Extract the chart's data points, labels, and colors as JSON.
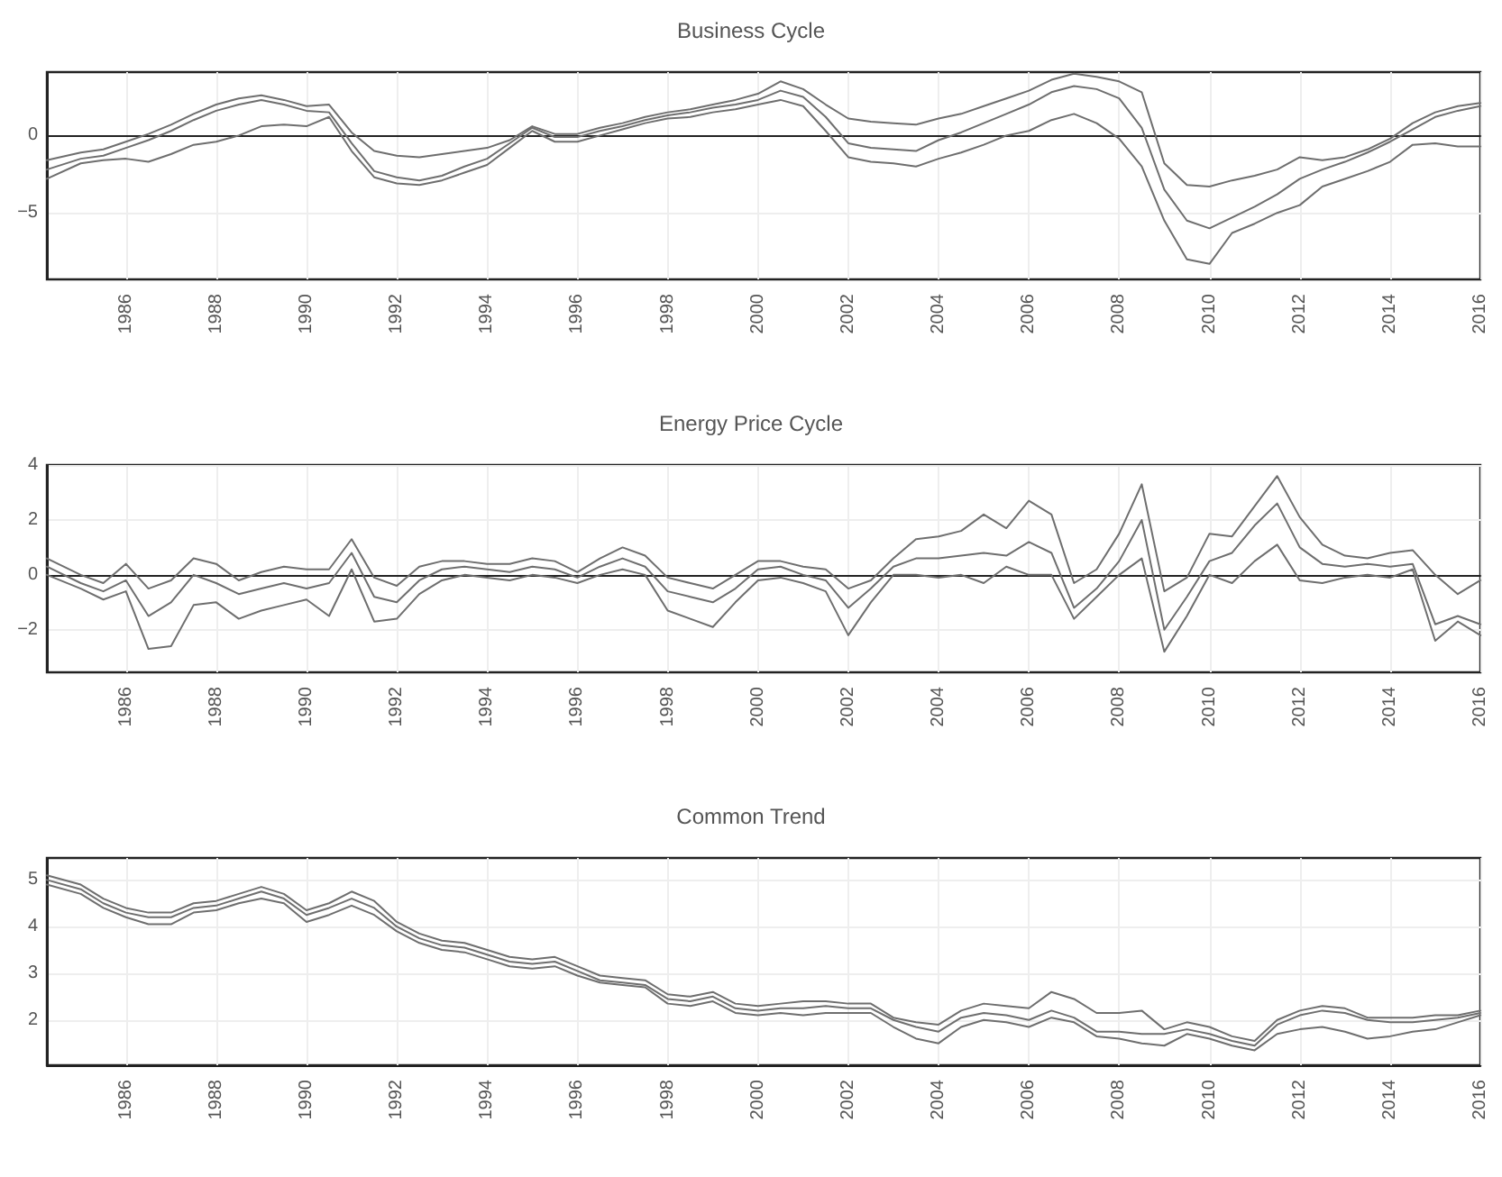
{
  "chart_data": [
    {
      "type": "line",
      "title": "Business Cycle",
      "grid": true,
      "marker": "none",
      "line_style": "solid",
      "xlim": [
        1984.25,
        2016
      ],
      "xticks": [
        1986,
        1988,
        1990,
        1992,
        1994,
        1996,
        1998,
        2000,
        2002,
        2004,
        2006,
        2008,
        2010,
        2012,
        2014,
        2016
      ],
      "ylim": [
        -9.3,
        4.1
      ],
      "yticks": [
        -5,
        0
      ],
      "x": [
        1984.25,
        1985,
        1985.5,
        1986,
        1986.5,
        1987,
        1987.5,
        1988,
        1988.5,
        1989,
        1989.5,
        1990,
        1990.5,
        1991,
        1991.5,
        1992,
        1992.5,
        1993,
        1993.5,
        1994,
        1994.5,
        1995,
        1995.5,
        1996,
        1996.5,
        1997,
        1997.5,
        1998,
        1998.5,
        1999,
        1999.5,
        2000,
        2000.5,
        2001,
        2001.5,
        2002,
        2002.5,
        2003,
        2003.5,
        2004,
        2004.5,
        2005,
        2005.5,
        2006,
        2006.5,
        2007,
        2007.5,
        2008,
        2008.5,
        2009,
        2009.5,
        2010,
        2010.5,
        2011,
        2011.5,
        2012,
        2012.5,
        2013,
        2013.5,
        2014,
        2014.5,
        2015,
        2015.5,
        2016
      ],
      "series": [
        {
          "color": "#6e6e6e",
          "values": [
            -1.6,
            -1.1,
            -0.9,
            -0.4,
            0.1,
            0.7,
            1.4,
            2.0,
            2.4,
            2.6,
            2.3,
            1.9,
            2.0,
            0.2,
            -1.0,
            -1.3,
            -1.4,
            -1.2,
            -1.0,
            -0.8,
            -0.3,
            0.6,
            0.1,
            0.1,
            0.5,
            0.8,
            1.2,
            1.5,
            1.7,
            2.0,
            2.3,
            2.7,
            3.5,
            3.0,
            2.0,
            1.1,
            0.9,
            0.8,
            0.7,
            1.1,
            1.4,
            1.9,
            2.4,
            2.9,
            3.6,
            4.0,
            3.8,
            3.5,
            2.8,
            -1.8,
            -3.2,
            -3.3,
            -2.9,
            -2.6,
            -2.2,
            -1.4,
            -1.6,
            -1.4,
            -0.9,
            -0.2,
            0.8,
            1.5,
            1.9,
            2.1
          ]
        },
        {
          "color": "#6e6e6e",
          "values": [
            -2.2,
            -1.5,
            -1.3,
            -0.8,
            -0.3,
            0.3,
            1.0,
            1.6,
            2.0,
            2.3,
            2.0,
            1.6,
            1.5,
            -0.5,
            -2.3,
            -2.7,
            -2.9,
            -2.6,
            -2.0,
            -1.5,
            -0.5,
            0.5,
            -0.1,
            -0.1,
            0.3,
            0.6,
            1.0,
            1.3,
            1.5,
            1.8,
            2.0,
            2.3,
            2.9,
            2.5,
            1.2,
            -0.5,
            -0.8,
            -0.9,
            -1.0,
            -0.3,
            0.2,
            0.8,
            1.4,
            2.0,
            2.8,
            3.2,
            3.0,
            2.4,
            0.5,
            -3.5,
            -5.5,
            -6.0,
            -5.3,
            -4.6,
            -3.8,
            -2.8,
            -2.2,
            -1.7,
            -1.1,
            -0.4,
            0.4,
            1.2,
            1.6,
            1.9
          ]
        },
        {
          "color": "#6e6e6e",
          "values": [
            -2.8,
            -1.8,
            -1.6,
            -1.5,
            -1.7,
            -1.2,
            -0.6,
            -0.4,
            0.0,
            0.6,
            0.7,
            0.6,
            1.2,
            -1.0,
            -2.7,
            -3.1,
            -3.2,
            -2.9,
            -2.4,
            -1.9,
            -0.8,
            0.3,
            -0.4,
            -0.4,
            0.0,
            0.4,
            0.8,
            1.1,
            1.2,
            1.5,
            1.7,
            2.0,
            2.3,
            1.9,
            0.3,
            -1.4,
            -1.7,
            -1.8,
            -2.0,
            -1.5,
            -1.1,
            -0.6,
            0.0,
            0.3,
            1.0,
            1.4,
            0.8,
            -0.2,
            -2.0,
            -5.5,
            -8.0,
            -8.3,
            -6.3,
            -5.7,
            -5.0,
            -4.5,
            -3.3,
            -2.8,
            -2.3,
            -1.7,
            -0.6,
            -0.5,
            -0.7,
            -0.7
          ]
        }
      ]
    },
    {
      "type": "line",
      "title": "Energy Price Cycle",
      "grid": true,
      "marker": "none",
      "line_style": "solid",
      "xlim": [
        1984.25,
        2016
      ],
      "xticks": [
        1986,
        1988,
        1990,
        1992,
        1994,
        1996,
        1998,
        2000,
        2002,
        2004,
        2006,
        2008,
        2010,
        2012,
        2014,
        2016
      ],
      "ylim": [
        -3.55,
        4
      ],
      "yticks": [
        -2,
        0,
        2,
        4
      ],
      "x": [
        1984.25,
        1985,
        1985.5,
        1986,
        1986.5,
        1987,
        1987.5,
        1988,
        1988.5,
        1989,
        1989.5,
        1990,
        1990.5,
        1991,
        1991.5,
        1992,
        1992.5,
        1993,
        1993.5,
        1994,
        1994.5,
        1995,
        1995.5,
        1996,
        1996.5,
        1997,
        1997.5,
        1998,
        1998.5,
        1999,
        1999.5,
        2000,
        2000.5,
        2001,
        2001.5,
        2002,
        2002.5,
        2003,
        2003.5,
        2004,
        2004.5,
        2005,
        2005.5,
        2006,
        2006.5,
        2007,
        2007.5,
        2008,
        2008.5,
        2009,
        2009.5,
        2010,
        2010.5,
        2011,
        2011.5,
        2012,
        2012.5,
        2013,
        2013.5,
        2014,
        2014.5,
        2015,
        2015.5,
        2016
      ],
      "series": [
        {
          "color": "#6e6e6e",
          "values": [
            0.6,
            0.0,
            -0.3,
            0.4,
            -0.5,
            -0.2,
            0.6,
            0.4,
            -0.2,
            0.1,
            0.3,
            0.2,
            0.2,
            1.3,
            -0.1,
            -0.4,
            0.3,
            0.5,
            0.5,
            0.4,
            0.4,
            0.6,
            0.5,
            0.1,
            0.6,
            1.0,
            0.7,
            -0.1,
            -0.3,
            -0.5,
            0.0,
            0.5,
            0.5,
            0.3,
            0.2,
            -0.5,
            -0.2,
            0.6,
            1.3,
            1.4,
            1.6,
            2.2,
            1.7,
            2.7,
            2.2,
            -0.3,
            0.2,
            1.5,
            3.3,
            -0.6,
            -0.1,
            1.5,
            1.4,
            2.5,
            3.6,
            2.1,
            1.1,
            0.7,
            0.6,
            0.8,
            0.9,
            0.0,
            -0.7,
            -0.2
          ]
        },
        {
          "color": "#6e6e6e",
          "values": [
            0.3,
            -0.3,
            -0.6,
            -0.2,
            -1.5,
            -1.0,
            0.0,
            -0.3,
            -0.7,
            -0.5,
            -0.3,
            -0.5,
            -0.3,
            0.8,
            -0.8,
            -1.0,
            -0.2,
            0.2,
            0.3,
            0.2,
            0.1,
            0.3,
            0.2,
            -0.1,
            0.3,
            0.6,
            0.3,
            -0.6,
            -0.8,
            -1.0,
            -0.5,
            0.2,
            0.3,
            0.0,
            -0.2,
            -1.2,
            -0.5,
            0.3,
            0.6,
            0.6,
            0.7,
            0.8,
            0.7,
            1.2,
            0.8,
            -1.2,
            -0.5,
            0.5,
            2.0,
            -2.0,
            -0.8,
            0.5,
            0.8,
            1.8,
            2.6,
            1.0,
            0.4,
            0.3,
            0.4,
            0.3,
            0.4,
            -1.8,
            -1.5,
            -1.8
          ]
        },
        {
          "color": "#6e6e6e",
          "values": [
            0.0,
            -0.5,
            -0.9,
            -0.6,
            -2.7,
            -2.6,
            -1.1,
            -1.0,
            -1.6,
            -1.3,
            -1.1,
            -0.9,
            -1.5,
            0.2,
            -1.7,
            -1.6,
            -0.7,
            -0.2,
            0.0,
            -0.1,
            -0.2,
            0.0,
            -0.1,
            -0.3,
            0.0,
            0.2,
            0.0,
            -1.3,
            -1.6,
            -1.9,
            -1.0,
            -0.2,
            -0.1,
            -0.3,
            -0.6,
            -2.2,
            -1.0,
            0.0,
            0.0,
            -0.1,
            0.0,
            -0.3,
            0.3,
            0.0,
            0.0,
            -1.6,
            -0.8,
            0.0,
            0.6,
            -2.8,
            -1.5,
            0.0,
            -0.3,
            0.5,
            1.1,
            -0.2,
            -0.3,
            -0.1,
            0.0,
            -0.1,
            0.2,
            -2.4,
            -1.7,
            -2.2
          ]
        }
      ]
    },
    {
      "type": "line",
      "title": "Common Trend",
      "grid": true,
      "marker": "none",
      "line_style": "solid",
      "xlim": [
        1984.25,
        2016
      ],
      "xticks": [
        1986,
        1988,
        1990,
        1992,
        1994,
        1996,
        1998,
        2000,
        2002,
        2004,
        2006,
        2008,
        2010,
        2012,
        2014,
        2016
      ],
      "ylim": [
        1.03,
        5.47
      ],
      "yticks": [
        2,
        3,
        4,
        5
      ],
      "x": [
        1984.25,
        1985,
        1985.5,
        1986,
        1986.5,
        1987,
        1987.5,
        1988,
        1988.5,
        1989,
        1989.5,
        1990,
        1990.5,
        1991,
        1991.5,
        1992,
        1992.5,
        1993,
        1993.5,
        1994,
        1994.5,
        1995,
        1995.5,
        1996,
        1996.5,
        1997,
        1997.5,
        1998,
        1998.5,
        1999,
        1999.5,
        2000,
        2000.5,
        2001,
        2001.5,
        2002,
        2002.5,
        2003,
        2003.5,
        2004,
        2004.5,
        2005,
        2005.5,
        2006,
        2006.5,
        2007,
        2007.5,
        2008,
        2008.5,
        2009,
        2009.5,
        2010,
        2010.5,
        2011,
        2011.5,
        2012,
        2012.5,
        2013,
        2013.5,
        2014,
        2014.5,
        2015,
        2015.5,
        2016
      ],
      "series": [
        {
          "color": "#6e6e6e",
          "values": [
            5.1,
            4.9,
            4.6,
            4.4,
            4.3,
            4.3,
            4.5,
            4.55,
            4.7,
            4.85,
            4.7,
            4.35,
            4.5,
            4.75,
            4.55,
            4.1,
            3.85,
            3.7,
            3.65,
            3.5,
            3.35,
            3.3,
            3.35,
            3.15,
            2.95,
            2.9,
            2.85,
            2.55,
            2.5,
            2.6,
            2.35,
            2.3,
            2.35,
            2.4,
            2.4,
            2.35,
            2.35,
            2.05,
            1.95,
            1.9,
            2.2,
            2.35,
            2.3,
            2.25,
            2.6,
            2.45,
            2.15,
            2.15,
            2.2,
            1.8,
            1.95,
            1.85,
            1.65,
            1.55,
            2.0,
            2.2,
            2.3,
            2.25,
            2.05,
            2.05,
            2.05,
            2.1,
            2.1,
            2.2
          ]
        },
        {
          "color": "#6e6e6e",
          "values": [
            5.0,
            4.8,
            4.5,
            4.3,
            4.2,
            4.2,
            4.4,
            4.45,
            4.6,
            4.75,
            4.6,
            4.25,
            4.4,
            4.6,
            4.4,
            4.0,
            3.75,
            3.6,
            3.55,
            3.4,
            3.25,
            3.2,
            3.25,
            3.05,
            2.85,
            2.8,
            2.75,
            2.45,
            2.4,
            2.5,
            2.25,
            2.2,
            2.25,
            2.25,
            2.3,
            2.25,
            2.25,
            2.0,
            1.85,
            1.75,
            2.05,
            2.15,
            2.1,
            2.0,
            2.2,
            2.05,
            1.75,
            1.75,
            1.7,
            1.7,
            1.8,
            1.7,
            1.55,
            1.45,
            1.9,
            2.1,
            2.2,
            2.15,
            2.0,
            1.95,
            1.95,
            2.0,
            2.05,
            2.15
          ]
        },
        {
          "color": "#6e6e6e",
          "values": [
            4.9,
            4.7,
            4.4,
            4.2,
            4.05,
            4.05,
            4.3,
            4.35,
            4.5,
            4.6,
            4.5,
            4.1,
            4.25,
            4.45,
            4.25,
            3.9,
            3.65,
            3.5,
            3.45,
            3.3,
            3.15,
            3.1,
            3.15,
            2.95,
            2.8,
            2.75,
            2.7,
            2.35,
            2.3,
            2.4,
            2.15,
            2.1,
            2.15,
            2.1,
            2.15,
            2.15,
            2.15,
            1.85,
            1.6,
            1.5,
            1.85,
            2.0,
            1.95,
            1.85,
            2.05,
            1.95,
            1.65,
            1.6,
            1.5,
            1.45,
            1.7,
            1.6,
            1.45,
            1.35,
            1.7,
            1.8,
            1.85,
            1.75,
            1.6,
            1.65,
            1.75,
            1.8,
            1.95,
            2.1
          ]
        }
      ]
    }
  ]
}
